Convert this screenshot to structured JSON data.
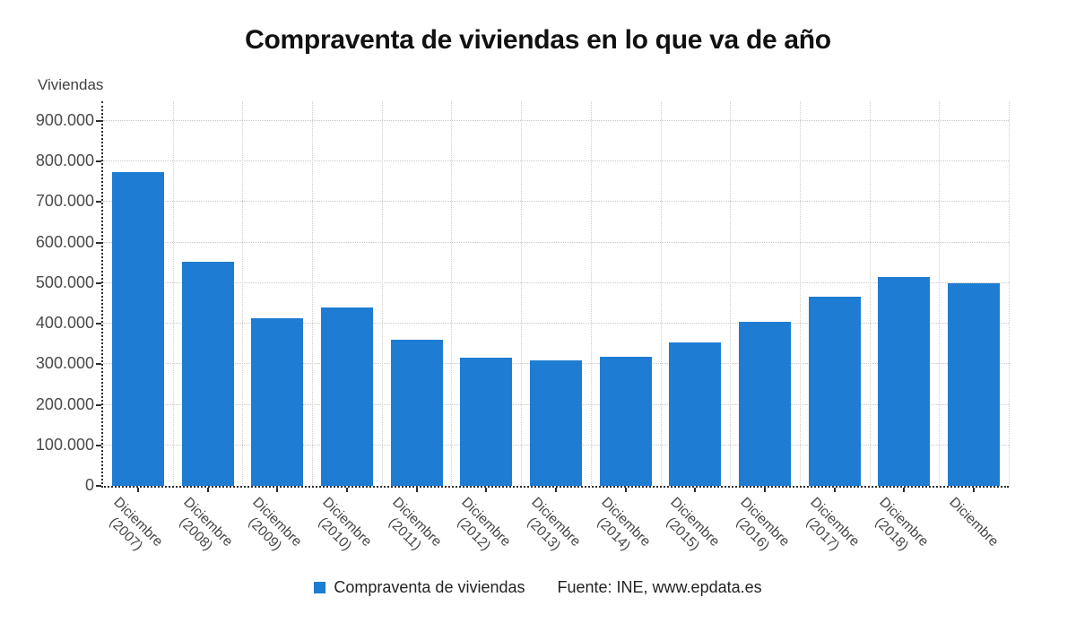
{
  "header": {
    "title": "Compraventa de viviendas en lo que va de año"
  },
  "axis": {
    "y_unit_label": "Viviendas",
    "y_ticks": [
      "0",
      "100.000",
      "200.000",
      "300.000",
      "400.000",
      "500.000",
      "600.000",
      "700.000",
      "800.000",
      "900.000"
    ]
  },
  "legend": {
    "series_label": "Compraventa de viviendas",
    "source_label": "Fuente: INE, www.epdata.es"
  },
  "colors": {
    "bar": "#1e7dd2",
    "grid_light": "#cdcdcd",
    "axis_dark": "#2e2e2e"
  },
  "chart_data": {
    "type": "bar",
    "title": "Compraventa de viviendas en lo que va de año",
    "xlabel": "",
    "ylabel": "Viviendas",
    "ylim": [
      0,
      950000
    ],
    "grid": true,
    "legend_position": "bottom",
    "bar_color": "#1e7dd2",
    "categories": [
      "Diciembre (2007)",
      "Diciembre (2008)",
      "Diciembre (2009)",
      "Diciembre (2010)",
      "Diciembre (2011)",
      "Diciembre (2012)",
      "Diciembre (2013)",
      "Diciembre (2014)",
      "Diciembre (2015)",
      "Diciembre (2016)",
      "Diciembre (2017)",
      "Diciembre (2018)",
      "Diciembre"
    ],
    "series": [
      {
        "name": "Compraventa de viviendas",
        "values": [
          775000,
          552000,
          413000,
          440000,
          360000,
          317000,
          310000,
          318000,
          354000,
          404000,
          467000,
          515000,
          500000
        ]
      }
    ]
  }
}
